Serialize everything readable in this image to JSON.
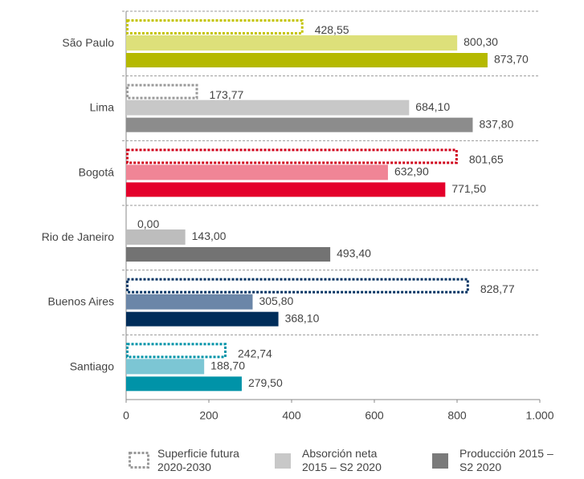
{
  "chart_data": {
    "type": "grouped-hbar",
    "categories": [
      "São Paulo",
      "Lima",
      "Bogotá",
      "Rio de Janeiro",
      "Buenos Aires",
      "Santiago"
    ],
    "series": [
      {
        "name": "Superficie futura 2020-2030",
        "style": "dotted",
        "color": "#999999",
        "colors": [
          "#c4c400",
          "#9a9a9a",
          "#d0021b",
          "#9a9a9a",
          "#003262",
          "#0093a8"
        ],
        "values": [
          428.55,
          173.77,
          801.65,
          0,
          828.77,
          242.74
        ],
        "value_labels": [
          "428,55",
          "173,77",
          "801,65",
          "0,00",
          "828,77",
          "242,74"
        ]
      },
      {
        "name": "Absorción neta 2015 – S2 2020",
        "style": "solid",
        "color": "#c8c8c8",
        "colors": [
          "#dde07a",
          "#c8c8c8",
          "#f08596",
          "#bdbdbd",
          "#6b86a8",
          "#7cc6d4"
        ],
        "values": [
          800.3,
          684.1,
          632.9,
          143,
          305.8,
          188.7
        ],
        "value_labels": [
          "800,30",
          "684,10",
          "632,90",
          "143,00",
          "305,80",
          "188,70"
        ]
      },
      {
        "name": "Producción 2015 – S2 2020",
        "style": "solid",
        "color": "#7a7a7a",
        "colors": [
          "#b5b900",
          "#8c8c8c",
          "#e4002b",
          "#737373",
          "#002d5a",
          "#0093a8"
        ],
        "values": [
          873.7,
          837.8,
          771.5,
          493.4,
          368.1,
          279.5
        ],
        "value_labels": [
          "873,70",
          "837,80",
          "771,50",
          "493,40",
          "368,10",
          "279,50"
        ]
      }
    ],
    "xlim": [
      0,
      1000
    ],
    "xticks": [
      0,
      200,
      400,
      600,
      800,
      {
        "value": 1000,
        "label": "1.000"
      }
    ],
    "legend": "bottom"
  }
}
